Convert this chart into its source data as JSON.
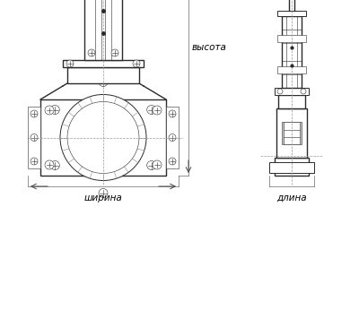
{
  "bg_color": "#ffffff",
  "line_color": "#2a2a2a",
  "dim_line_color": "#444444",
  "label_color": "#000000",
  "label_fontsize": 7.5,
  "label_vysota": "высота",
  "label_shirina": "ширина",
  "label_dlina": "длина",
  "fig_width": 4.0,
  "fig_height": 3.46,
  "dpi": 100
}
